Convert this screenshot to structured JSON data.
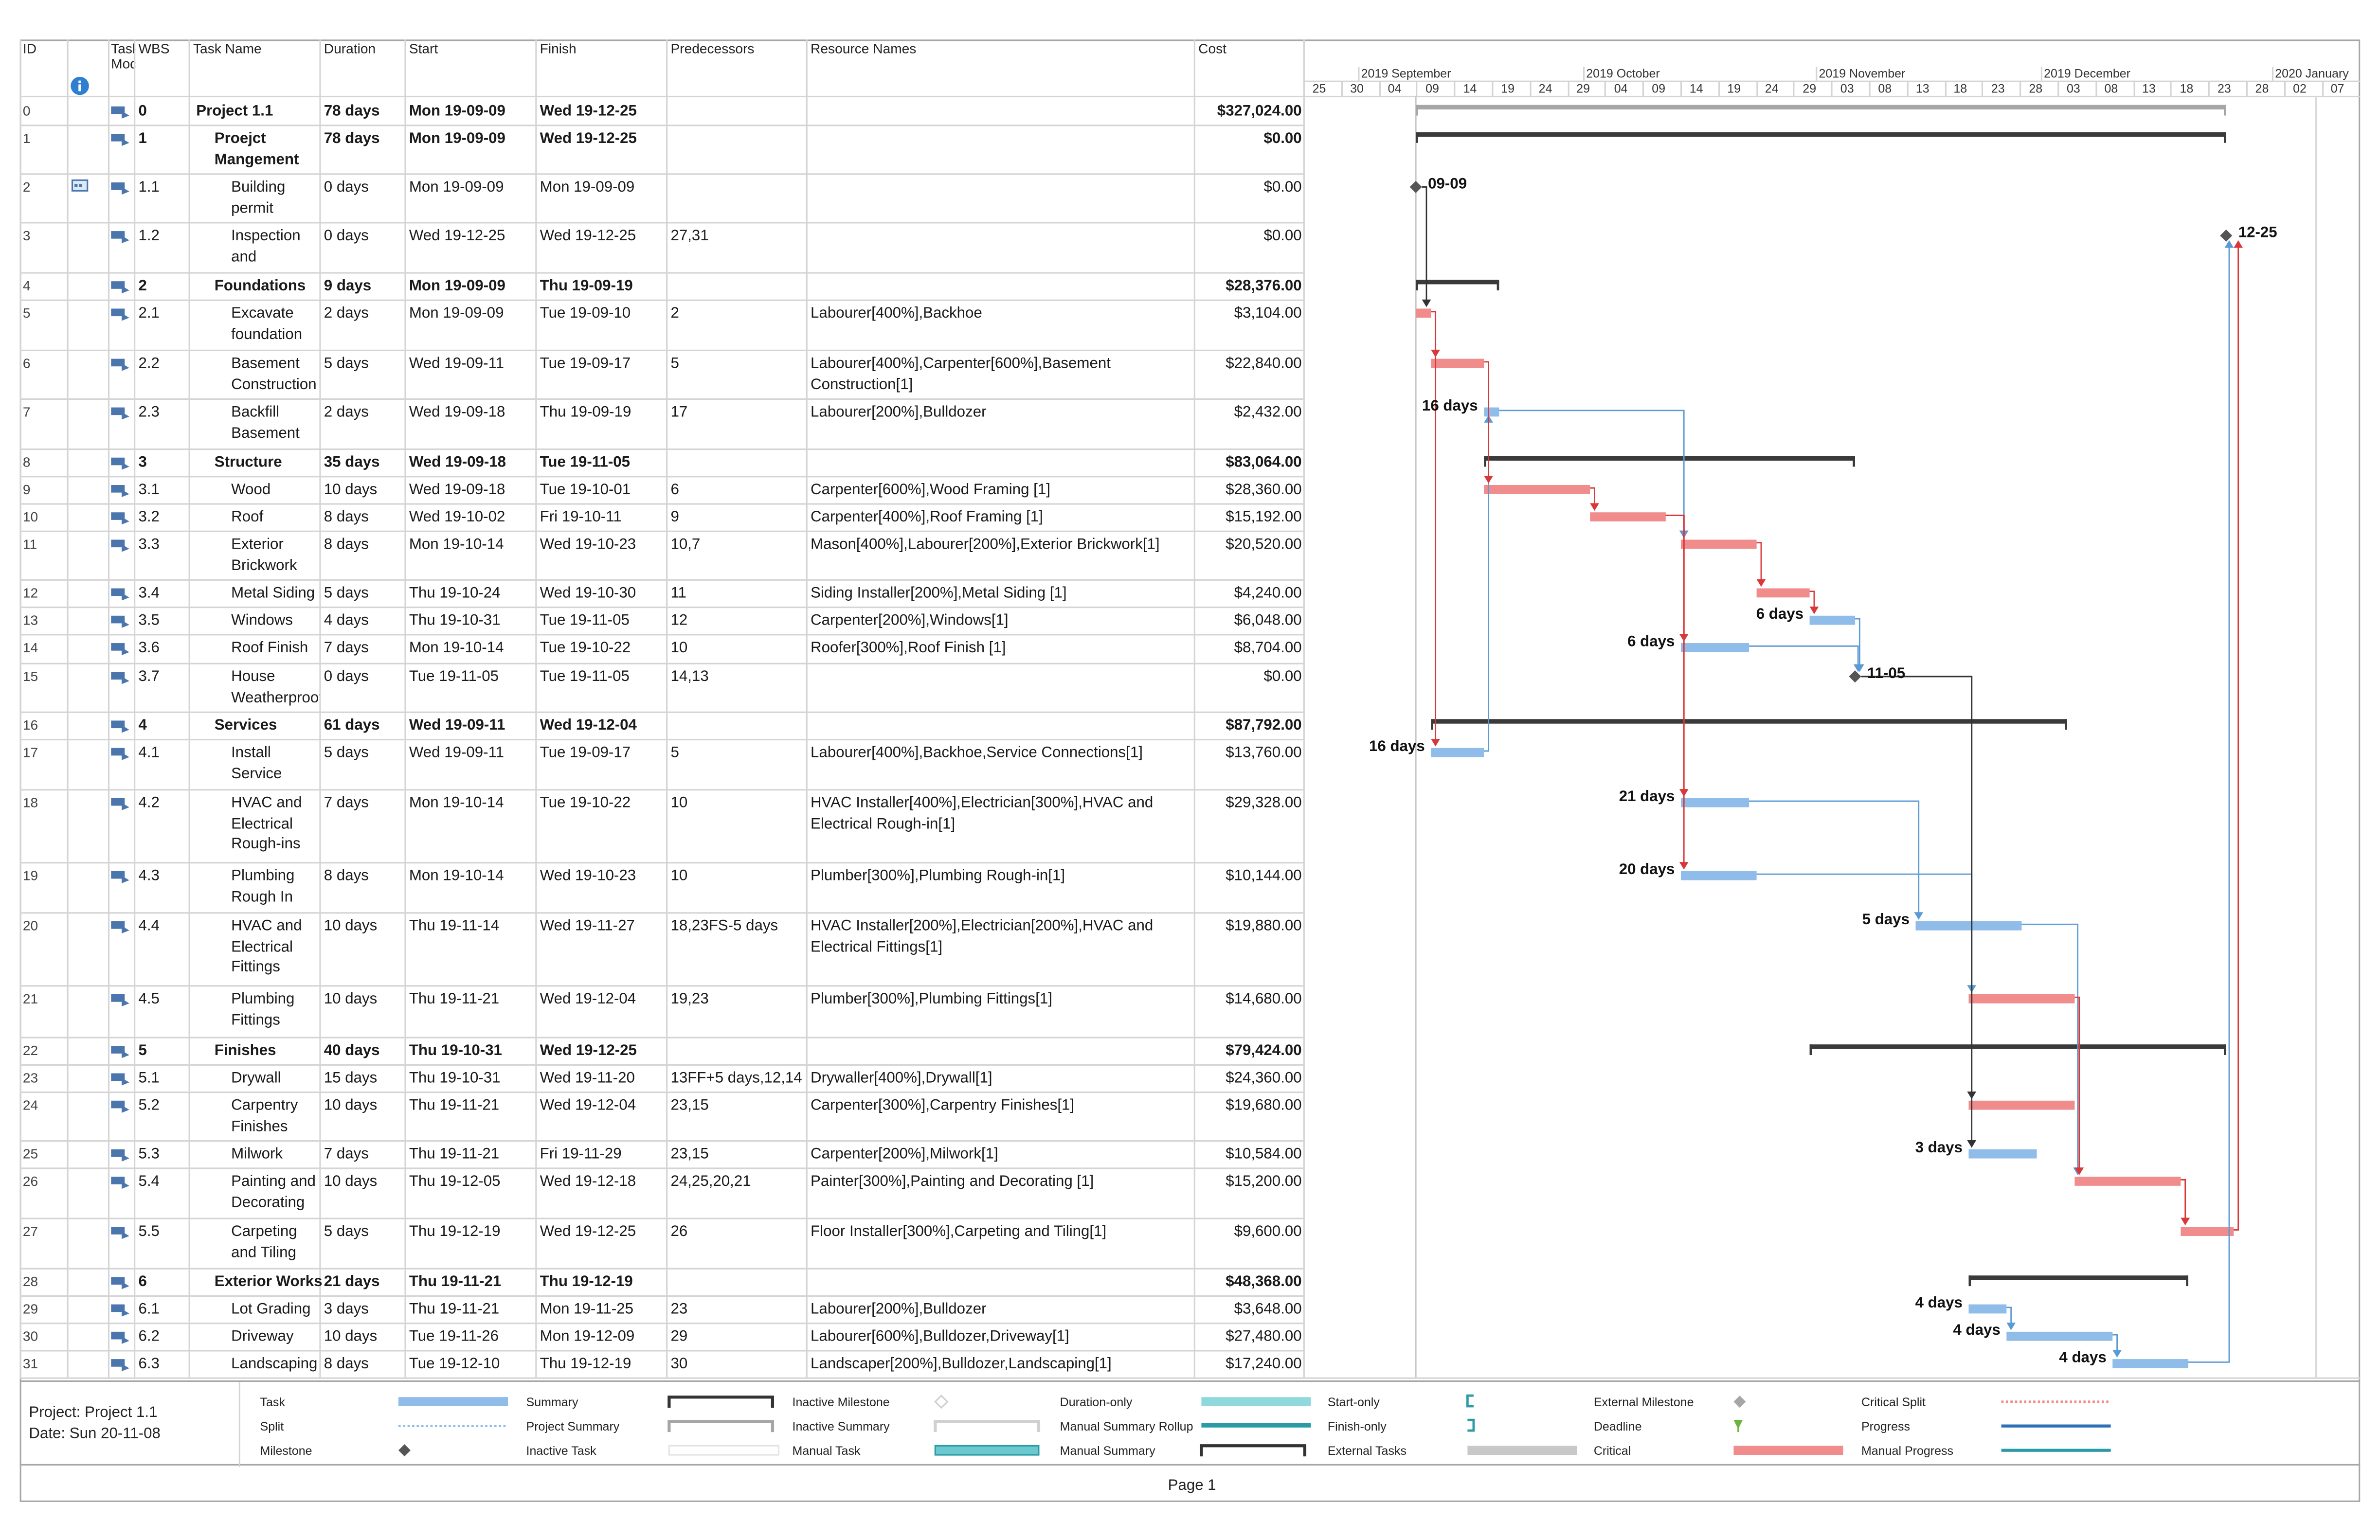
{
  "columns": {
    "id": "ID",
    "mode": "Task Mode",
    "wbs": "WBS",
    "name": "Task Name",
    "duration": "Duration",
    "start": "Start",
    "finish": "Finish",
    "pred": "Predecessors",
    "res": "Resource Names",
    "cost": "Cost"
  },
  "timeline": {
    "months": [
      {
        "label": "2019 September",
        "week": "09-01"
      },
      {
        "label": "2019 October",
        "week": "09-29"
      },
      {
        "label": "2019 November",
        "week": "11-03"
      },
      {
        "label": "2019 December",
        "week": "12-01"
      },
      {
        "label": "2020 January",
        "week": "12-29"
      }
    ],
    "weeks": [
      "25",
      "30",
      "04",
      "09",
      "14",
      "19",
      "24",
      "29",
      "04",
      "09",
      "14",
      "19",
      "24",
      "29",
      "03",
      "08",
      "13",
      "18",
      "23",
      "28",
      "03",
      "08",
      "13",
      "18",
      "23",
      "28",
      "02",
      "07"
    ]
  },
  "tasks": [
    {
      "id": "0",
      "wbs": "0",
      "name": "Project 1.1",
      "duration": "78 days",
      "start": "Mon 19-09-09",
      "finish": "Wed 19-12-25",
      "pred": "",
      "res": "",
      "cost": "$327,024.00",
      "bold": true,
      "level": 0,
      "type": "project",
      "s": 0,
      "f": 107
    },
    {
      "id": "1",
      "wbs": "1",
      "name": "Proejct Mangement",
      "duration": "78 days",
      "start": "Mon 19-09-09",
      "finish": "Wed 19-12-25",
      "pred": "",
      "res": "",
      "cost": "$0.00",
      "bold": true,
      "level": 1,
      "type": "summary",
      "s": 0,
      "f": 107
    },
    {
      "id": "2",
      "wbs": "1.1",
      "name": "Building permit",
      "duration": "0 days",
      "start": "Mon 19-09-09",
      "finish": "Mon 19-09-09",
      "pred": "",
      "res": "",
      "cost": "$0.00",
      "level": 2,
      "type": "milestone",
      "s": 0,
      "f": 0,
      "label": "09-09",
      "info": true
    },
    {
      "id": "3",
      "wbs": "1.2",
      "name": "Inspection and",
      "duration": "0 days",
      "start": "Wed 19-12-25",
      "finish": "Wed 19-12-25",
      "pred": "27,31",
      "res": "",
      "cost": "$0.00",
      "level": 2,
      "type": "milestone",
      "s": 107,
      "f": 107,
      "label": "12-25"
    },
    {
      "id": "4",
      "wbs": "2",
      "name": "Foundations",
      "duration": "9 days",
      "start": "Mon 19-09-09",
      "finish": "Thu 19-09-19",
      "pred": "",
      "res": "",
      "cost": "$28,376.00",
      "bold": true,
      "level": 1,
      "type": "summary",
      "s": 0,
      "f": 11
    },
    {
      "id": "5",
      "wbs": "2.1",
      "name": "Excavate foundation",
      "duration": "2 days",
      "start": "Mon 19-09-09",
      "finish": "Tue 19-09-10",
      "pred": "2",
      "res": "Labourer[400%],Backhoe",
      "cost": "$3,104.00",
      "level": 2,
      "type": "critical",
      "s": 0,
      "f": 2
    },
    {
      "id": "6",
      "wbs": "2.2",
      "name": "Basement Construction",
      "duration": "5 days",
      "start": "Wed 19-09-11",
      "finish": "Tue 19-09-17",
      "pred": "5",
      "res": "Labourer[400%],Carpenter[600%],Basement Construction[1]",
      "cost": "$22,840.00",
      "level": 2,
      "type": "critical",
      "s": 2,
      "f": 9
    },
    {
      "id": "7",
      "wbs": "2.3",
      "name": "Backfill Basement",
      "duration": "2 days",
      "start": "Wed 19-09-18",
      "finish": "Thu 19-09-19",
      "pred": "17",
      "res": "Labourer[200%],Bulldozer",
      "cost": "$2,432.00",
      "level": 2,
      "type": "task",
      "s": 9,
      "f": 11,
      "slack": "16 days",
      "slackSide": "left"
    },
    {
      "id": "8",
      "wbs": "3",
      "name": "Structure",
      "duration": "35 days",
      "start": "Wed 19-09-18",
      "finish": "Tue 19-11-05",
      "pred": "",
      "res": "",
      "cost": "$83,064.00",
      "bold": true,
      "level": 1,
      "type": "summary",
      "s": 9,
      "f": 58
    },
    {
      "id": "9",
      "wbs": "3.1",
      "name": "Wood Framing",
      "duration": "10 days",
      "start": "Wed 19-09-18",
      "finish": "Tue 19-10-01",
      "pred": "6",
      "res": "Carpenter[600%],Wood Framing [1]",
      "cost": "$28,360.00",
      "level": 2,
      "type": "critical",
      "s": 9,
      "f": 23
    },
    {
      "id": "10",
      "wbs": "3.2",
      "name": "Roof Framing",
      "duration": "8 days",
      "start": "Wed 19-10-02",
      "finish": "Fri 19-10-11",
      "pred": "9",
      "res": "Carpenter[400%],Roof Framing [1]",
      "cost": "$15,192.00",
      "level": 2,
      "type": "critical",
      "s": 23,
      "f": 33
    },
    {
      "id": "11",
      "wbs": "3.3",
      "name": "Exterior Brickwork",
      "duration": "8 days",
      "start": "Mon 19-10-14",
      "finish": "Wed 19-10-23",
      "pred": "10,7",
      "res": "Mason[400%],Labourer[200%],Exterior Brickwork[1]",
      "cost": "$20,520.00",
      "level": 2,
      "type": "critical",
      "s": 35,
      "f": 45
    },
    {
      "id": "12",
      "wbs": "3.4",
      "name": "Metal Siding",
      "duration": "5 days",
      "start": "Thu 19-10-24",
      "finish": "Wed 19-10-30",
      "pred": "11",
      "res": "Siding Installer[200%],Metal Siding [1]",
      "cost": "$4,240.00",
      "level": 2,
      "type": "critical",
      "s": 45,
      "f": 52
    },
    {
      "id": "13",
      "wbs": "3.5",
      "name": "Windows",
      "duration": "4 days",
      "start": "Thu 19-10-31",
      "finish": "Tue 19-11-05",
      "pred": "12",
      "res": "Carpenter[200%],Windows[1]",
      "cost": "$6,048.00",
      "level": 2,
      "type": "task",
      "s": 52,
      "f": 58,
      "slack": "6 days",
      "slackSide": "left"
    },
    {
      "id": "14",
      "wbs": "3.6",
      "name": "Roof Finish",
      "duration": "7 days",
      "start": "Mon 19-10-14",
      "finish": "Tue 19-10-22",
      "pred": "10",
      "res": "Roofer[300%],Roof Finish [1]",
      "cost": "$8,704.00",
      "level": 2,
      "type": "task",
      "s": 35,
      "f": 44,
      "slack": "6 days",
      "slackSide": "left"
    },
    {
      "id": "15",
      "wbs": "3.7",
      "name": "House Weatherproofed",
      "duration": "0 days",
      "start": "Tue 19-11-05",
      "finish": "Tue 19-11-05",
      "pred": "14,13",
      "res": "",
      "cost": "$0.00",
      "level": 2,
      "type": "milestone",
      "s": 58,
      "f": 58,
      "label": "11-05"
    },
    {
      "id": "16",
      "wbs": "4",
      "name": "Services",
      "duration": "61 days",
      "start": "Wed 19-09-11",
      "finish": "Wed 19-12-04",
      "pred": "",
      "res": "",
      "cost": "$87,792.00",
      "bold": true,
      "level": 1,
      "type": "summary",
      "s": 2,
      "f": 86
    },
    {
      "id": "17",
      "wbs": "4.1",
      "name": "Install Service",
      "duration": "5 days",
      "start": "Wed 19-09-11",
      "finish": "Tue 19-09-17",
      "pred": "5",
      "res": "Labourer[400%],Backhoe,Service Connections[1]",
      "cost": "$13,760.00",
      "level": 2,
      "type": "task",
      "s": 2,
      "f": 9,
      "slack": "16 days",
      "slackSide": "left"
    },
    {
      "id": "18",
      "wbs": "4.2",
      "name": "HVAC and Electrical Rough-ins",
      "duration": "7 days",
      "start": "Mon 19-10-14",
      "finish": "Tue 19-10-22",
      "pred": "10",
      "res": "HVAC Installer[400%],Electrician[300%],HVAC and Electrical Rough-in[1]",
      "cost": "$29,328.00",
      "level": 2,
      "type": "task",
      "s": 35,
      "f": 44,
      "slack": "21 days",
      "slackSide": "left"
    },
    {
      "id": "19",
      "wbs": "4.3",
      "name": "Plumbing Rough In",
      "duration": "8 days",
      "start": "Mon 19-10-14",
      "finish": "Wed 19-10-23",
      "pred": "10",
      "res": "Plumber[300%],Plumbing Rough-in[1]",
      "cost": "$10,144.00",
      "level": 2,
      "type": "task",
      "s": 35,
      "f": 45,
      "slack": "20 days",
      "slackSide": "left"
    },
    {
      "id": "20",
      "wbs": "4.4",
      "name": "HVAC and Electrical Fittings",
      "duration": "10 days",
      "start": "Thu 19-11-14",
      "finish": "Wed 19-11-27",
      "pred": "18,23FS-5 days",
      "res": "HVAC Installer[200%],Electrician[200%],HVAC and Electrical Fittings[1]",
      "cost": "$19,880.00",
      "level": 2,
      "type": "task",
      "s": 66,
      "f": 80,
      "slack": "5 days",
      "slackSide": "left"
    },
    {
      "id": "21",
      "wbs": "4.5",
      "name": "Plumbing Fittings",
      "duration": "10 days",
      "start": "Thu 19-11-21",
      "finish": "Wed 19-12-04",
      "pred": "19,23",
      "res": "Plumber[300%],Plumbing Fittings[1]",
      "cost": "$14,680.00",
      "level": 2,
      "type": "critical",
      "s": 73,
      "f": 87
    },
    {
      "id": "22",
      "wbs": "5",
      "name": "Finishes",
      "duration": "40 days",
      "start": "Thu 19-10-31",
      "finish": "Wed 19-12-25",
      "pred": "",
      "res": "",
      "cost": "$79,424.00",
      "bold": true,
      "level": 1,
      "type": "summary",
      "s": 52,
      "f": 107
    },
    {
      "id": "23",
      "wbs": "5.1",
      "name": "Drywall",
      "duration": "15 days",
      "start": "Thu 19-10-31",
      "finish": "Wed 19-11-20",
      "pred": "13FF+5 days,12,14",
      "res": "Drywaller[400%],Drywall[1]",
      "cost": "$24,360.00",
      "level": 2,
      "type": "none",
      "s": 52,
      "f": 73
    },
    {
      "id": "24",
      "wbs": "5.2",
      "name": "Carpentry Finishes",
      "duration": "10 days",
      "start": "Thu 19-11-21",
      "finish": "Wed 19-12-04",
      "pred": "23,15",
      "res": "Carpenter[300%],Carpentry Finishes[1]",
      "cost": "$19,680.00",
      "level": 2,
      "type": "critical",
      "s": 73,
      "f": 87
    },
    {
      "id": "25",
      "wbs": "5.3",
      "name": "Milwork",
      "duration": "7 days",
      "start": "Thu 19-11-21",
      "finish": "Fri 19-11-29",
      "pred": "23,15",
      "res": "Carpenter[200%],Milwork[1]",
      "cost": "$10,584.00",
      "level": 2,
      "type": "task",
      "s": 73,
      "f": 82,
      "slack": "3 days",
      "slackSide": "left"
    },
    {
      "id": "26",
      "wbs": "5.4",
      "name": "Painting and Decorating",
      "duration": "10 days",
      "start": "Thu 19-12-05",
      "finish": "Wed 19-12-18",
      "pred": "24,25,20,21",
      "res": "Painter[300%],Painting and Decorating [1]",
      "cost": "$15,200.00",
      "level": 2,
      "type": "critical",
      "s": 87,
      "f": 101
    },
    {
      "id": "27",
      "wbs": "5.5",
      "name": "Carpeting and Tiling",
      "duration": "5 days",
      "start": "Thu 19-12-19",
      "finish": "Wed 19-12-25",
      "pred": "26",
      "res": "Floor Installer[300%],Carpeting and Tiling[1]",
      "cost": "$9,600.00",
      "level": 2,
      "type": "critical",
      "s": 101,
      "f": 108
    },
    {
      "id": "28",
      "wbs": "6",
      "name": "Exterior Works",
      "duration": "21 days",
      "start": "Thu 19-11-21",
      "finish": "Thu 19-12-19",
      "pred": "",
      "res": "",
      "cost": "$48,368.00",
      "bold": true,
      "level": 1,
      "type": "summary",
      "s": 73,
      "f": 102
    },
    {
      "id": "29",
      "wbs": "6.1",
      "name": "Lot Grading",
      "duration": "3 days",
      "start": "Thu 19-11-21",
      "finish": "Mon 19-11-25",
      "pred": "23",
      "res": "Labourer[200%],Bulldozer",
      "cost": "$3,648.00",
      "level": 2,
      "type": "task",
      "s": 73,
      "f": 78,
      "slack": "4 days",
      "slackSide": "left"
    },
    {
      "id": "30",
      "wbs": "6.2",
      "name": "Driveway",
      "duration": "10 days",
      "start": "Tue 19-11-26",
      "finish": "Mon 19-12-09",
      "pred": "29",
      "res": "Labourer[600%],Bulldozer,Driveway[1]",
      "cost": "$27,480.00",
      "level": 2,
      "type": "task",
      "s": 78,
      "f": 92,
      "slack": "4 days",
      "slackSide": "left"
    },
    {
      "id": "31",
      "wbs": "6.3",
      "name": "Landscaping",
      "duration": "8 days",
      "start": "Tue 19-12-10",
      "finish": "Thu 19-12-19",
      "pred": "30",
      "res": "Landscaper[200%],Bulldozer,Landscaping[1]",
      "cost": "$17,240.00",
      "level": 2,
      "type": "task",
      "s": 92,
      "f": 102,
      "slack": "4 days",
      "slackSide": "left"
    }
  ],
  "legend": [
    {
      "label": "Task",
      "sym": "task"
    },
    {
      "label": "Split",
      "sym": "split"
    },
    {
      "label": "Milestone",
      "sym": "milestone"
    },
    {
      "label": "Summary",
      "sym": "summary"
    },
    {
      "label": "Project Summary",
      "sym": "psummary"
    },
    {
      "label": "Inactive Task",
      "sym": "itask"
    },
    {
      "label": "Inactive Milestone",
      "sym": "imilestone"
    },
    {
      "label": "Inactive Summary",
      "sym": "isummary"
    },
    {
      "label": "Manual Task",
      "sym": "mtask"
    },
    {
      "label": "Duration-only",
      "sym": "donly"
    },
    {
      "label": "Manual Summary Rollup",
      "sym": "msr"
    },
    {
      "label": "Manual Summary",
      "sym": "msummary"
    },
    {
      "label": "Start-only",
      "sym": "sonly"
    },
    {
      "label": "Finish-only",
      "sym": "fonly"
    },
    {
      "label": "External Tasks",
      "sym": "ext"
    },
    {
      "label": "External Milestone",
      "sym": "extm"
    },
    {
      "label": "Deadline",
      "sym": "deadline"
    },
    {
      "label": "Critical",
      "sym": "critical"
    },
    {
      "label": "Critical Split",
      "sym": "csplit"
    },
    {
      "label": "Progress",
      "sym": "progress"
    },
    {
      "label": "Manual Progress",
      "sym": "mprogress"
    }
  ],
  "footer": {
    "project": "Project: Project 1.1",
    "date": "Date: Sun 20-11-08",
    "page": "Page 1"
  },
  "colors": {
    "task": "#8fbce8",
    "critical": "#f08c8c",
    "summary": "#3a3a3a",
    "link_blue": "#5b9bd5",
    "link_red": "#d9383a",
    "grid": "#d4d4d4"
  }
}
